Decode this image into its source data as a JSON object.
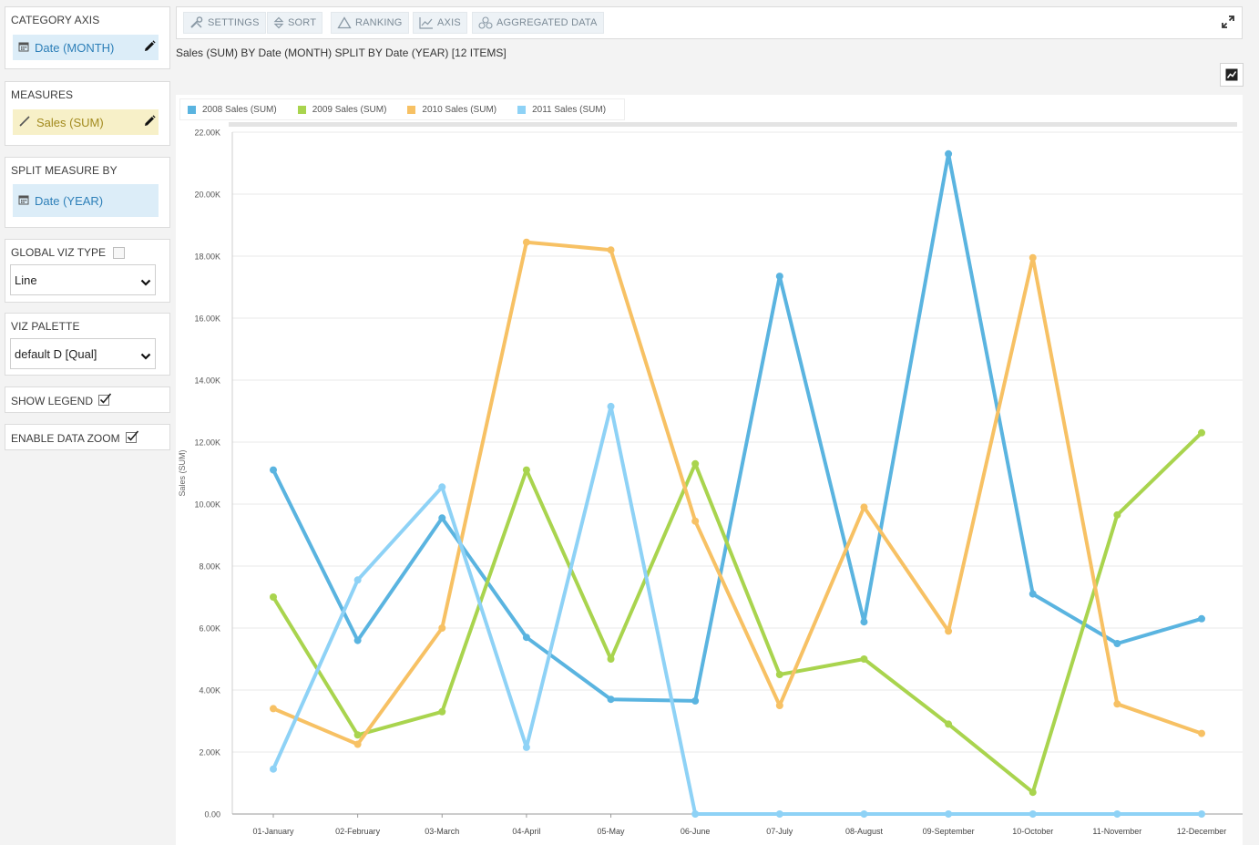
{
  "sidebar": {
    "category_axis": {
      "title": "CATEGORY AXIS",
      "field": "Date (MONTH)"
    },
    "measures": {
      "title": "MEASURES",
      "field": "Sales (SUM)"
    },
    "split_measure_by": {
      "title": "SPLIT MEASURE BY",
      "field": "Date (YEAR)"
    },
    "global_viz_type": {
      "title": "GLOBAL VIZ TYPE",
      "checked": false,
      "value": "Line"
    },
    "viz_palette": {
      "title": "VIZ PALETTE",
      "value": "default D [Qual]"
    },
    "show_legend": {
      "label": "SHOW LEGEND",
      "checked": true
    },
    "enable_data_zoom": {
      "label": "ENABLE DATA ZOOM",
      "checked": true
    }
  },
  "toolbar": {
    "settings": "SETTINGS",
    "sort": "SORT",
    "ranking": "RANKING",
    "axis": "AXIS",
    "aggregated": "AGGREGATED DATA"
  },
  "viz_title": "Sales (SUM) BY Date (MONTH) SPLIT BY Date (YEAR) [12 ITEMS]",
  "chart_data": {
    "type": "line",
    "title": "",
    "xlabel": "",
    "ylabel": "Sales (SUM)",
    "ylim": [
      0,
      22000
    ],
    "y_ticks": [
      "0.00",
      "2.00K",
      "4.00K",
      "6.00K",
      "8.00K",
      "10.00K",
      "12.00K",
      "14.00K",
      "16.00K",
      "18.00K",
      "20.00K",
      "22.00K"
    ],
    "grid": true,
    "legend_placement": "top-left",
    "categories": [
      "01-January",
      "02-February",
      "03-March",
      "04-April",
      "05-May",
      "06-June",
      "07-July",
      "08-August",
      "09-September",
      "10-October",
      "11-November",
      "12-December"
    ],
    "series": [
      {
        "name": "2008 Sales (SUM)",
        "color": "#5ab4e0",
        "values": [
          11100,
          5600,
          9550,
          5700,
          3700,
          3650,
          17350,
          6200,
          21300,
          7100,
          5500,
          6300
        ]
      },
      {
        "name": "2009 Sales (SUM)",
        "color": "#a9d44e",
        "values": [
          7000,
          2550,
          3300,
          11100,
          5000,
          11300,
          4500,
          5000,
          2900,
          700,
          9650,
          12300
        ]
      },
      {
        "name": "2010 Sales (SUM)",
        "color": "#f7c164",
        "values": [
          3400,
          2250,
          6000,
          18450,
          18200,
          9450,
          3500,
          9900,
          5900,
          17950,
          3550,
          2600
        ]
      },
      {
        "name": "2011 Sales (SUM)",
        "color": "#8ed2f6",
        "values": [
          1450,
          7550,
          10550,
          2150,
          13150,
          0,
          0,
          0,
          0,
          0,
          0,
          0
        ]
      }
    ]
  }
}
